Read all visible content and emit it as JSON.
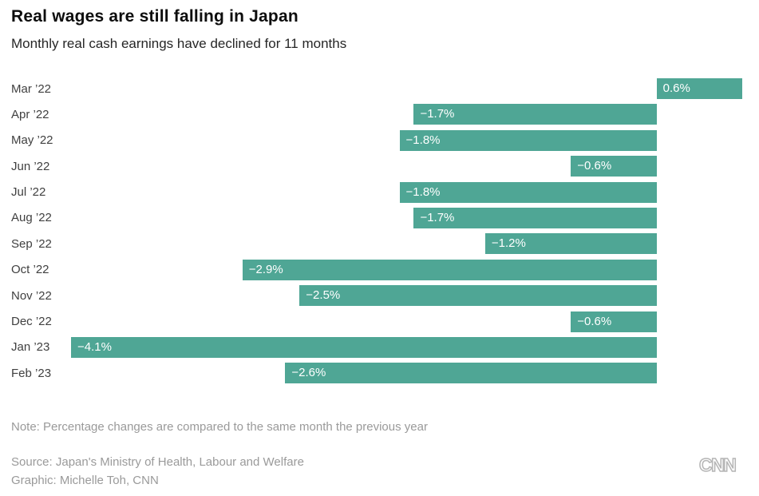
{
  "header": {
    "title": "Real wages are still falling in Japan",
    "subtitle": "Monthly real cash earnings have declined for 11 months"
  },
  "chart_data": {
    "type": "bar",
    "orientation": "horizontal",
    "title": "Real wages are still falling in Japan",
    "subtitle": "Monthly real cash earnings have declined for 11 months",
    "categories": [
      "Mar ’22",
      "Apr ’22",
      "May ’22",
      "Jun ’22",
      "Jul ’22",
      "Aug ’22",
      "Sep ’22",
      "Oct ’22",
      "Nov ’22",
      "Dec ’22",
      "Jan ’23",
      "Feb ’23"
    ],
    "values": [
      0.6,
      -1.7,
      -1.8,
      -0.6,
      -1.8,
      -1.7,
      -1.2,
      -2.9,
      -2.5,
      -0.6,
      -4.1,
      -2.6
    ],
    "labels": [
      "0.6%",
      "−1.7%",
      "−1.8%",
      "−0.6%",
      "−1.8%",
      "−1.7%",
      "−1.2%",
      "−2.9%",
      "−2.5%",
      "−0.6%",
      "−4.1%",
      "−2.6%"
    ],
    "xlabel": "",
    "ylabel": "",
    "xlim": [
      -4.1,
      0.6
    ],
    "grid": false,
    "legend": false,
    "bar_color": "#4fa695",
    "value_label_color": "#ffffff",
    "units": "percent change vs same month previous year"
  },
  "footer": {
    "note": "Note: Percentage changes are compared to the same month the previous year",
    "source": "Source: Japan's Ministry of Health, Labour and Welfare",
    "graphic": "Graphic: Michelle Toh, CNN",
    "logo": "CNN"
  }
}
